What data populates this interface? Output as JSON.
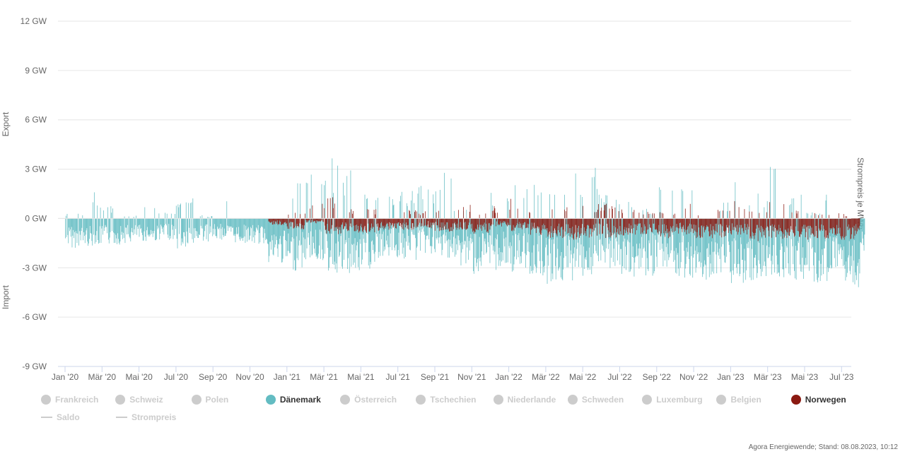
{
  "chart_data": {
    "type": "bar",
    "stacked": true,
    "title": "",
    "ylabel_top": "Export",
    "ylabel_bottom": "Import",
    "ylabel_right": "Strompreis je MWh",
    "ylim": [
      -9,
      12
    ],
    "y_ticks": [
      "12 GW",
      "9 GW",
      "6 GW",
      "3 GW",
      "0 GW",
      "-3 GW",
      "-6 GW",
      "-9 GW"
    ],
    "y_tick_values": [
      12,
      9,
      6,
      3,
      0,
      -3,
      -6,
      -9
    ],
    "x_ticks": [
      "Jan '20",
      "Mär '20",
      "Mai '20",
      "Jul '20",
      "Sep '20",
      "Nov '20",
      "Jan '21",
      "Mär '21",
      "Mai '21",
      "Jul '21",
      "Sep '21",
      "Nov '21",
      "Jan '22",
      "Mär '22",
      "Mai '22",
      "Jul '22",
      "Sep '22",
      "Nov '22",
      "Jan '23",
      "Mär '23",
      "Mai '23",
      "Jul '23"
    ],
    "x_tick_months": [
      0,
      2,
      4,
      6,
      8,
      10,
      12,
      14,
      16,
      18,
      20,
      22,
      24,
      26,
      28,
      30,
      32,
      34,
      36,
      38,
      40,
      42
    ],
    "grid": true,
    "legend_placement": "bottom",
    "series_monthly_approx": [
      {
        "name": "Dänemark",
        "color": "#63bcc2",
        "x_months": [
          "Jan '20",
          "Feb '20",
          "Mär '20",
          "Apr '20",
          "Mai '20",
          "Jun '20",
          "Jul '20",
          "Aug '20",
          "Sep '20",
          "Okt '20",
          "Nov '20",
          "Dez '20",
          "Jan '21",
          "Feb '21",
          "Mär '21",
          "Apr '21",
          "Mai '21",
          "Jun '21",
          "Jul '21",
          "Aug '21",
          "Sep '21",
          "Okt '21",
          "Nov '21",
          "Dez '21",
          "Jan '22",
          "Feb '22",
          "Mär '22",
          "Apr '22",
          "Mai '22",
          "Jun '22",
          "Jul '22",
          "Aug '22",
          "Sep '22",
          "Okt '22",
          "Nov '22",
          "Dez '22",
          "Jan '23",
          "Feb '23",
          "Mär '23",
          "Apr '23",
          "Mai '23",
          "Jun '23",
          "Jul '23",
          "Aug '23"
        ],
        "typical_low": [
          -1.8,
          -1.7,
          -1.6,
          -1.5,
          -1.4,
          -1.3,
          -1.9,
          -1.4,
          -1.3,
          -1.5,
          -1.6,
          -2.8,
          -3.2,
          -2.6,
          -3.4,
          -3.6,
          -3.2,
          -2.4,
          -2.6,
          -2.2,
          -2.4,
          -3.0,
          -3.4,
          -3.2,
          -3.3,
          -3.5,
          -4.0,
          -3.8,
          -3.6,
          -3.4,
          -3.6,
          -3.5,
          -3.0,
          -3.6,
          -3.8,
          -3.4,
          -4.0,
          -3.9,
          -3.6,
          -3.8,
          -4.2,
          -3.8,
          -4.3,
          -2.0
        ],
        "typical_high": [
          0.3,
          1.6,
          0.8,
          0.2,
          1.3,
          0.5,
          1.4,
          0.2,
          1.2,
          0.0,
          0.0,
          0.0,
          2.3,
          2.8,
          3.8,
          3.2,
          2.4,
          1.5,
          1.8,
          2.2,
          4.0,
          0.7,
          0.0,
          1.8,
          2.8,
          2.2,
          2.5,
          2.8,
          3.6,
          1.5,
          1.3,
          0.6,
          2.0,
          1.8,
          0.0,
          1.0,
          3.8,
          1.6,
          3.4,
          2.0,
          0.4,
          1.8,
          0.0,
          0.0
        ]
      },
      {
        "name": "Norwegen",
        "color": "#8b1a12",
        "x_months": [
          "Dez '20",
          "Jan '21",
          "Feb '21",
          "Mär '21",
          "Apr '21",
          "Mai '21",
          "Jun '21",
          "Jul '21",
          "Aug '21",
          "Sep '21",
          "Okt '21",
          "Nov '21",
          "Dez '21",
          "Jan '22",
          "Feb '22",
          "Mär '22",
          "Apr '22",
          "Mai '22",
          "Jun '22",
          "Jul '22",
          "Aug '22",
          "Sep '22",
          "Okt '22",
          "Nov '22",
          "Dez '22",
          "Jan '23",
          "Feb '23",
          "Mär '23",
          "Apr '23",
          "Mai '23",
          "Jun '23",
          "Jul '23"
        ],
        "typical_low": [
          -0.4,
          -0.7,
          -0.3,
          -1.1,
          -0.9,
          -1.0,
          -0.7,
          -0.7,
          -0.6,
          -0.8,
          -0.7,
          -1.0,
          -0.5,
          -0.8,
          -1.0,
          -1.2,
          -1.3,
          -1.2,
          -1.2,
          -1.1,
          -1.0,
          -1.2,
          -1.0,
          -1.2,
          -1.2,
          -1.1,
          -1.4,
          -1.3,
          -1.2,
          -1.3,
          -1.3,
          -1.3
        ],
        "typical_high": [
          0.0,
          0.4,
          1.2,
          1.3,
          0.7,
          0.6,
          0.0,
          0.6,
          0.5,
          0.5,
          1.0,
          0.4,
          0.8,
          1.3,
          0.4,
          0.6,
          0.8,
          0.9,
          0.9,
          0.6,
          0.4,
          0.5,
          0.9,
          0.3,
          0.6,
          1.3,
          0.5,
          1.0,
          0.5,
          0.5,
          0.4,
          0.3
        ]
      }
    ]
  },
  "legend": {
    "row1": [
      {
        "label": "Frankreich",
        "active": false,
        "color": "#cccccc"
      },
      {
        "label": "Schweiz",
        "active": false,
        "color": "#cccccc"
      },
      {
        "label": "Polen",
        "active": false,
        "color": "#cccccc"
      },
      {
        "label": "Dänemark",
        "active": true,
        "color": "#63bcc2"
      },
      {
        "label": "Österreich",
        "active": false,
        "color": "#cccccc"
      },
      {
        "label": "Tschechien",
        "active": false,
        "color": "#cccccc"
      },
      {
        "label": "Niederlande",
        "active": false,
        "color": "#cccccc"
      },
      {
        "label": "Schweden",
        "active": false,
        "color": "#cccccc"
      },
      {
        "label": "Luxemburg",
        "active": false,
        "color": "#cccccc"
      },
      {
        "label": "Belgien",
        "active": false,
        "color": "#cccccc"
      },
      {
        "label": "Norwegen",
        "active": true,
        "color": "#8b1a12"
      }
    ],
    "row2": [
      {
        "label": "Saldo",
        "active": false
      },
      {
        "label": "Strompreis",
        "active": false
      }
    ]
  },
  "footer": "Agora Energiewende; Stand: 08.08.2023, 10:12"
}
